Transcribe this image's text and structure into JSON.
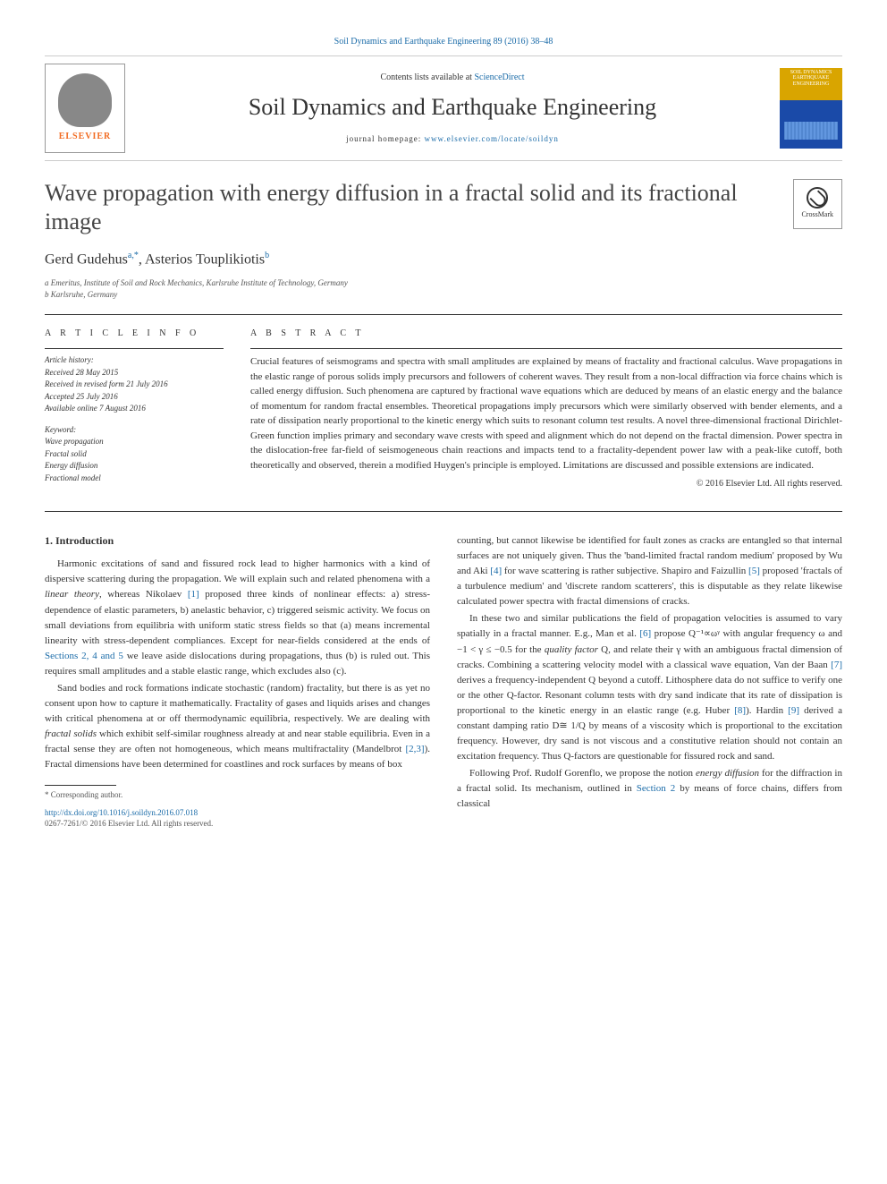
{
  "journal_header": "Soil Dynamics and Earthquake Engineering 89 (2016) 38–48",
  "elsevier_name": "ELSEVIER",
  "contents_line_prefix": "Contents lists available at ",
  "contents_line_link": "ScienceDirect",
  "journal_title": "Soil Dynamics and Earthquake Engineering",
  "homepage_prefix": "journal homepage: ",
  "homepage_link": "www.elsevier.com/locate/soildyn",
  "cover_title": "SOIL DYNAMICS EARTHQUAKE ENGINEERING",
  "crossmark_label": "CrossMark",
  "article_title": "Wave propagation with energy diffusion in a fractal solid and its fractional image",
  "authors": {
    "a1_name": "Gerd Gudehus",
    "a1_sup": "a,*",
    "a2_name": ", Asterios Touplikiotis",
    "a2_sup": "b"
  },
  "affiliations": {
    "a": "a Emeritus, Institute of Soil and Rock Mechanics, Karlsruhe Institute of Technology, Germany",
    "b": "b Karlsruhe, Germany"
  },
  "info_heading": "A R T I C L E  I N F O",
  "abstract_heading": "A B S T R A C T",
  "history": {
    "label": "Article history:",
    "received": "Received 28 May 2015",
    "revised": "Received in revised form 21 July 2016",
    "accepted": "Accepted 25 July 2016",
    "online": "Available online 7 August 2016"
  },
  "keywords": {
    "label": "Keyword:",
    "k1": "Wave propagation",
    "k2": "Fractal solid",
    "k3": "Energy diffusion",
    "k4": "Fractional model"
  },
  "abstract_text": "Crucial features of seismograms and spectra with small amplitudes are explained by means of fractality and fractional calculus. Wave propagations in the elastic range of porous solids imply precursors and followers of coherent waves. They result from a non-local diffraction via force chains which is called energy diffusion. Such phenomena are captured by fractional wave equations which are deduced by means of an elastic energy and the balance of momentum for random fractal ensembles. Theoretical propagations imply precursors which were similarly observed with bender elements, and a rate of dissipation nearly proportional to the kinetic energy which suits to resonant column test results. A novel three-dimensional fractional Dirichlet-Green function implies primary and secondary wave crests with speed and alignment which do not depend on the fractal dimension. Power spectra in the dislocation-free far-field of seismogeneous chain reactions and impacts tend to a fractality-dependent power law with a peak-like cutoff, both theoretically and observed, therein a modified Huygen's principle is employed. Limitations are discussed and possible extensions are indicated.",
  "copyright": "© 2016 Elsevier Ltd. All rights reserved.",
  "intro_heading": "1. Introduction",
  "body": {
    "p1a": "Harmonic excitations of sand and fissured rock lead to higher harmonics with a kind of dispersive scattering during the propagation. We will explain such and related phenomena with a ",
    "p1_linear": "linear theory",
    "p1b": ", whereas Nikolaev ",
    "p1_ref1": "[1]",
    "p1c": " proposed three kinds of nonlinear effects: a) stress-dependence of elastic parameters, b) anelastic behavior, c) triggered seismic activity. We focus on small deviations from equilibria with uniform static stress fields so that (a) means incremental linearity with stress-dependent compliances. Except for near-fields considered at the ends of ",
    "p1_sec": "Sections 2, 4 and 5",
    "p1d": " we leave aside dislocations during propagations, thus (b) is ruled out. This requires small amplitudes and a stable elastic range, which excludes also (c).",
    "p2a": "Sand bodies and rock formations indicate stochastic (random) fractality, but there is as yet no consent upon how to capture it mathematically. Fractality of gases and liquids arises and changes with critical phenomena at or off thermodynamic equilibria, respectively. We are dealing with ",
    "p2_fractal": "fractal solids",
    "p2b": " which exhibit self-similar roughness already at and near stable equilibria. Even in a fractal sense they are often not homogeneous, which means multifractality (Mandelbrot ",
    "p2_ref23": "[2,3]",
    "p2c": "). Fractal dimensions have been determined for coastlines and rock surfaces by means of box ",
    "p3a": "counting, but cannot likewise be identified for fault zones as cracks are entangled so that internal surfaces are not uniquely given. Thus the 'band-limited fractal random medium' proposed by Wu and Aki ",
    "p3_ref4": "[4]",
    "p3b": " for wave scattering is rather subjective. Shapiro and Faizullin ",
    "p3_ref5": "[5]",
    "p3c": " proposed 'fractals of a turbulence medium' and 'discrete random scatterers', this is disputable as they relate likewise calculated power spectra with fractal dimensions of cracks.",
    "p4a": "In these two and similar publications the field of propagation velocities is assumed to vary spatially in a fractal manner. E.g., Man et al. ",
    "p4_ref6": "[6]",
    "p4b": " propose Q⁻¹∝ωᵞ with angular frequency ω and −1 < γ ≤ −0.5 for the ",
    "p4_quality": "quality factor",
    "p4c": " Q, and relate their γ with an ambiguous fractal dimension of cracks. Combining a scattering velocity model with a classical wave equation, Van der Baan ",
    "p4_ref7": "[7]",
    "p4d": " derives a frequency-independent Q beyond a cutoff. Lithosphere data do not suffice to verify one or the other Q-factor. Resonant column tests with dry sand indicate that its rate of dissipation is proportional to the kinetic energy in an elastic range (e.g. Huber ",
    "p4_ref8": "[8]",
    "p4e": "). Hardin ",
    "p4_ref9": "[9]",
    "p4f": " derived a constant damping ratio D≅ 1/Q by means of a viscosity which is proportional to the excitation frequency. However, dry sand is not viscous and a constitutive relation should not contain an excitation frequency. Thus Q-factors are questionable for fissured rock and sand.",
    "p5a": "Following Prof. Rudolf Gorenflo, we propose the notion ",
    "p5_energy": "energy diffusion",
    "p5b": " for the diffraction in a fractal solid. Its mechanism, outlined in ",
    "p5_sec2": "Section 2",
    "p5c": " by means of force chains, differs from classical"
  },
  "footnote": "* Corresponding author.",
  "doi": "http://dx.doi.org/10.1016/j.soildyn.2016.07.018",
  "issn": "0267-7261/© 2016 Elsevier Ltd. All rights reserved.",
  "colors": {
    "link": "#1a6ba8",
    "elsevier_orange": "#f26b21",
    "text": "#333333"
  }
}
